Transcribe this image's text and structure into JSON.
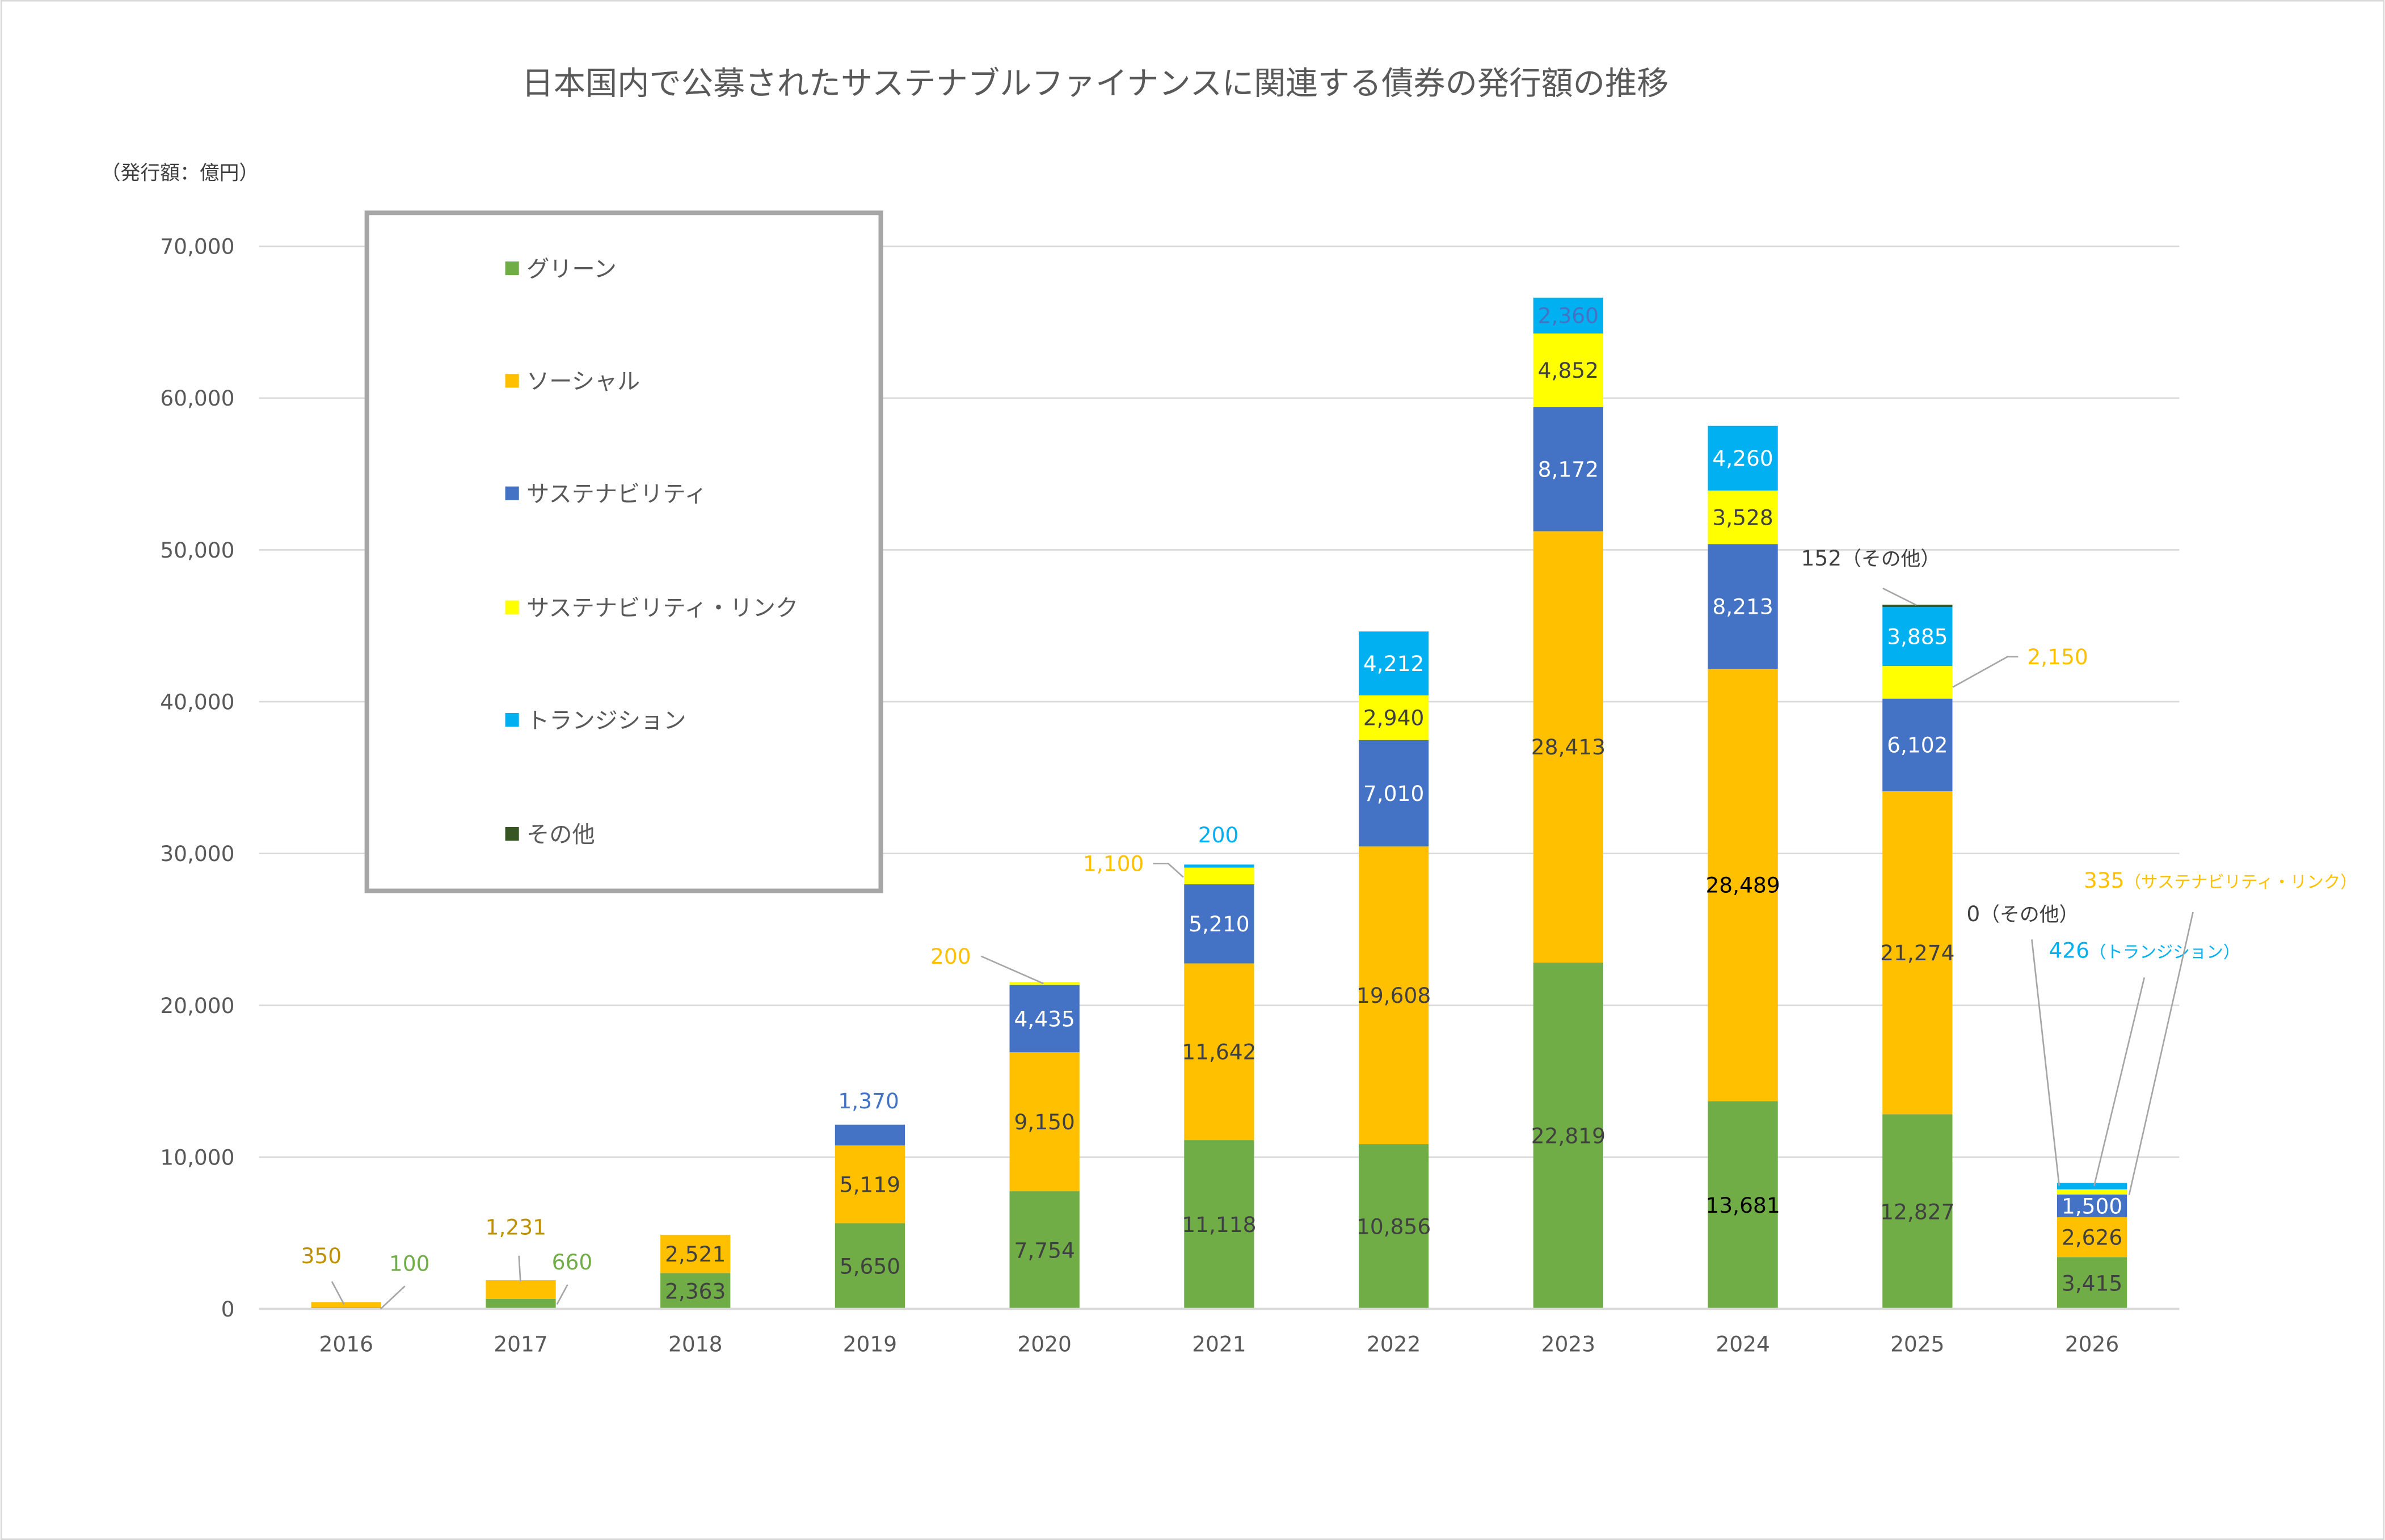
{
  "chart_data": {
    "type": "bar",
    "stacked": true,
    "title": "日本国内で公募されたサステナブルファイナンスに関連する債券の発行額の推移",
    "ylabel": "（発行額：億円）",
    "xlabel": "",
    "ylim": [
      0,
      70000
    ],
    "yticks": [
      "0",
      "10,000",
      "20,000",
      "30,000",
      "40,000",
      "50,000",
      "60,000",
      "70,000"
    ],
    "grid": true,
    "legend_position": "top-left",
    "categories": [
      "2016",
      "2017",
      "2018",
      "2019",
      "2020",
      "2021",
      "2022",
      "2023",
      "2024",
      "2025",
      "2026"
    ],
    "series": [
      {
        "name": "グリーン",
        "color": "#70ad47",
        "values": [
          100,
          660,
          2363,
          5650,
          7754,
          11118,
          10856,
          22819,
          13681,
          12827,
          3415
        ]
      },
      {
        "name": "ソーシャル",
        "color": "#ffc000",
        "values": [
          350,
          1231,
          2521,
          5119,
          9150,
          11642,
          19608,
          28413,
          28489,
          21274,
          2626
        ]
      },
      {
        "name": "サステナビリティ",
        "color": "#4472c4",
        "values": [
          0,
          0,
          0,
          1370,
          4435,
          5210,
          7010,
          8172,
          8213,
          6102,
          1500
        ]
      },
      {
        "name": "サステナビリティ・リンク",
        "color": "#ffff00",
        "values": [
          0,
          0,
          0,
          0,
          200,
          1100,
          2940,
          4852,
          3528,
          2150,
          335
        ]
      },
      {
        "name": "トランジション",
        "color": "#00b0f0",
        "values": [
          0,
          0,
          0,
          0,
          0,
          200,
          4212,
          2360,
          4260,
          3885,
          426
        ]
      },
      {
        "name": "その他",
        "color": "#375623",
        "values": [
          0,
          0,
          0,
          0,
          0,
          0,
          0,
          0,
          0,
          152,
          0
        ]
      }
    ],
    "outside_labels": [
      {
        "category": "2016",
        "series": "ソーシャル",
        "text": "350",
        "suffix": ""
      },
      {
        "category": "2016",
        "series": "グリーン",
        "text": "100",
        "suffix": ""
      },
      {
        "category": "2017",
        "series": "ソーシャル",
        "text": "1,231",
        "suffix": ""
      },
      {
        "category": "2017",
        "series": "グリーン",
        "text": "660",
        "suffix": ""
      },
      {
        "category": "2019",
        "series": "サステナビリティ",
        "text": "1,370",
        "suffix": ""
      },
      {
        "category": "2020",
        "series": "サステナビリティ・リンク",
        "text": "200",
        "suffix": ""
      },
      {
        "category": "2021",
        "series": "サステナビリティ・リンク",
        "text": "1,100",
        "suffix": ""
      },
      {
        "category": "2021",
        "series": "トランジション",
        "text": "200",
        "suffix": ""
      },
      {
        "category": "2025",
        "series": "その他",
        "text": "152",
        "suffix": "（その他）"
      },
      {
        "category": "2025",
        "series": "サステナビリティ・リンク",
        "text": "2,150",
        "suffix": ""
      },
      {
        "category": "2026",
        "series": "その他",
        "text": "0",
        "suffix": "（その他）"
      },
      {
        "category": "2026",
        "series": "トランジション",
        "text": "426",
        "suffix": "（トランジション）"
      },
      {
        "category": "2026",
        "series": "サステナビリティ・リンク",
        "text": "335",
        "suffix": "（サステナビリティ・リンク）"
      }
    ]
  }
}
